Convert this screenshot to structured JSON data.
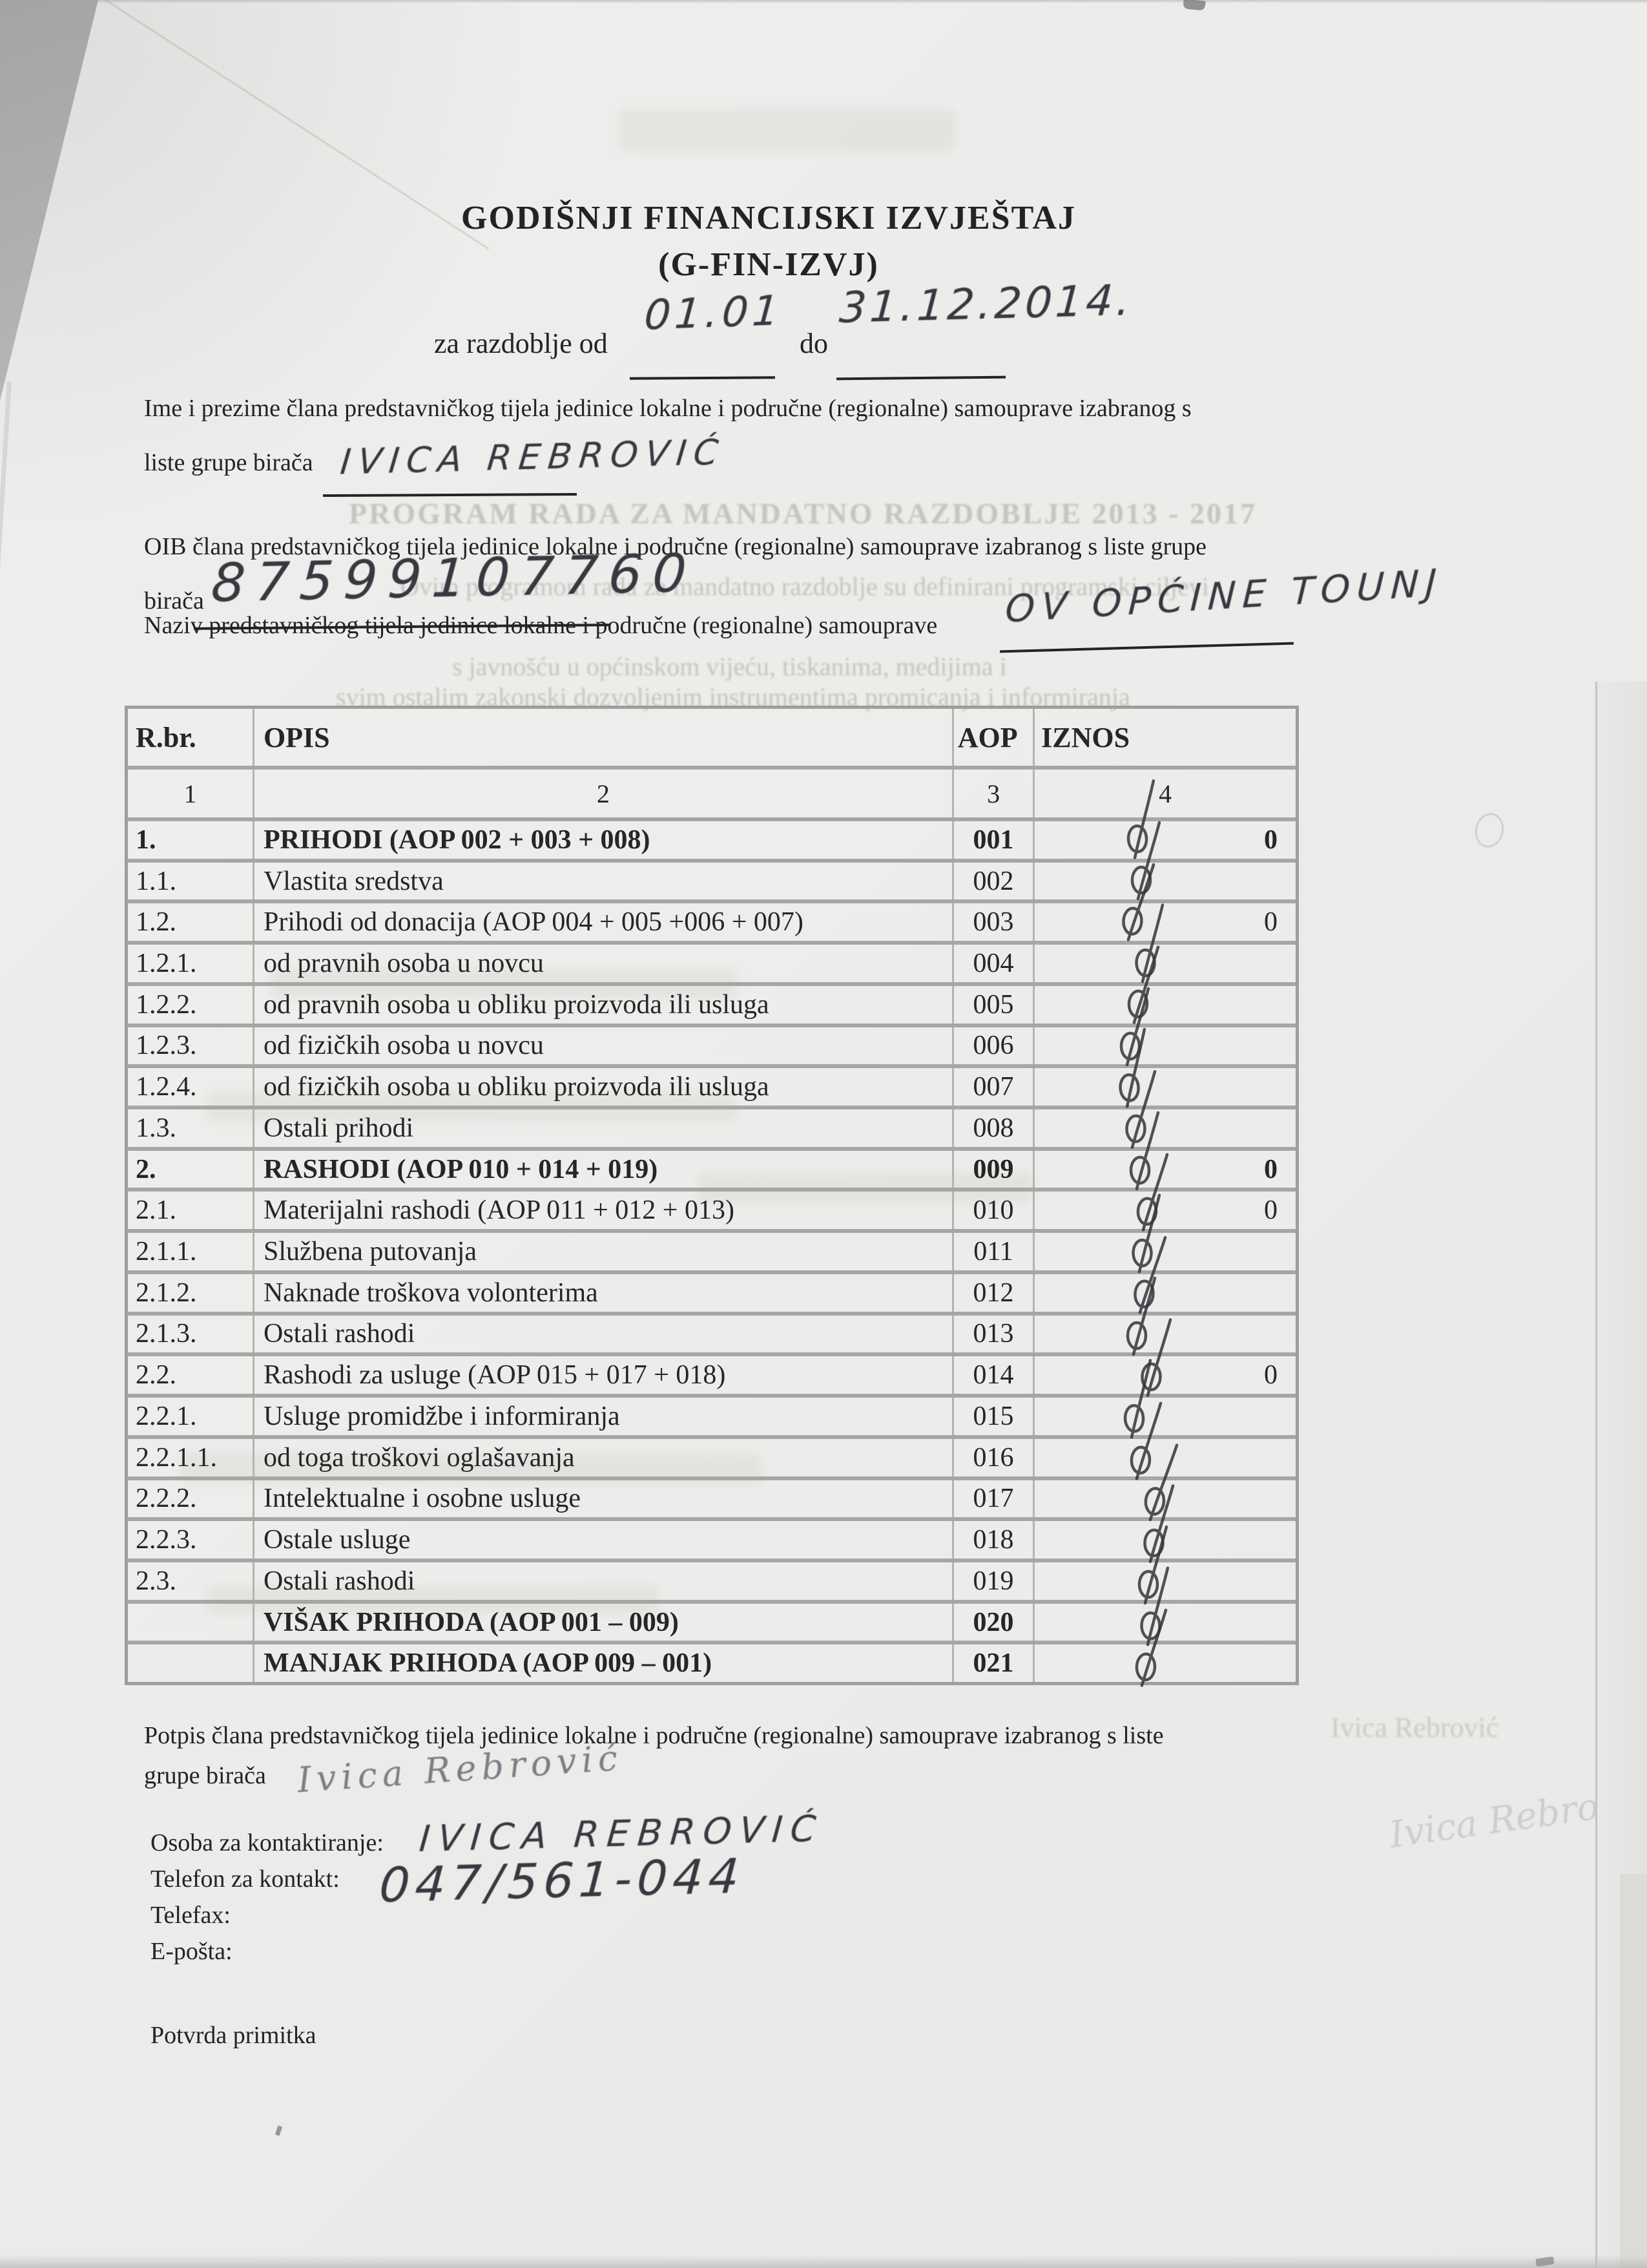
{
  "title": {
    "line1": "GODIŠNJI FINANCIJSKI IZVJEŠTAJ",
    "line2": "(G-FIN-IZVJ)"
  },
  "period": {
    "prefix": "za razdoblje od",
    "from_handwritten": "01.01",
    "do_label": "do",
    "to_handwritten": "31.12.2014."
  },
  "member_name": {
    "line1": "Ime i prezime člana predstavničkog tijela jedinice lokalne i područne (regionalne) samouprave izabranog s",
    "line2": "liste grupe birača",
    "handwritten": "IVICA REBROVIĆ"
  },
  "member_oib": {
    "line1": "OIB člana predstavničkog tijela jedinice lokalne i područne (regionalne) samouprave izabranog s liste grupe",
    "line2": "birača",
    "handwritten": "87599107760"
  },
  "naziv": {
    "line": "Naziv predstavničkog tijela jedinice lokalne i područne (regionalne) samouprave",
    "handwritten": "OV OPĆINE TOUNJ"
  },
  "table": {
    "headers": [
      "R.br.",
      "OPIS",
      "AOP",
      "IZNOS"
    ],
    "column_numbers": [
      "1",
      "2",
      "3",
      "4"
    ],
    "rows": [
      {
        "rbr": "1.",
        "opis": "PRIHODI (AOP 002 + 003 + 008)",
        "aop": "001",
        "iznos": "0",
        "bold": true
      },
      {
        "rbr": "1.1.",
        "opis": "Vlastita sredstva",
        "aop": "002",
        "iznos": ""
      },
      {
        "rbr": "1.2.",
        "opis": "Prihodi od donacija (AOP 004 + 005 +006 + 007)",
        "aop": "003",
        "iznos": "0"
      },
      {
        "rbr": "1.2.1.",
        "opis": "od pravnih osoba u novcu",
        "aop": "004",
        "iznos": ""
      },
      {
        "rbr": "1.2.2.",
        "opis": "od pravnih osoba u obliku proizvoda ili usluga",
        "aop": "005",
        "iznos": ""
      },
      {
        "rbr": "1.2.3.",
        "opis": "od fizičkih osoba u novcu",
        "aop": "006",
        "iznos": ""
      },
      {
        "rbr": "1.2.4.",
        "opis": "od fizičkih osoba u obliku proizvoda ili usluga",
        "aop": "007",
        "iznos": ""
      },
      {
        "rbr": "1.3.",
        "opis": "Ostali prihodi",
        "aop": "008",
        "iznos": ""
      },
      {
        "rbr": "2.",
        "opis": "RASHODI (AOP 010 + 014 + 019)",
        "aop": "009",
        "iznos": "0",
        "bold": true
      },
      {
        "rbr": "2.1.",
        "opis": "Materijalni rashodi (AOP 011 + 012 + 013)",
        "aop": "010",
        "iznos": "0"
      },
      {
        "rbr": "2.1.1.",
        "opis": "Službena putovanja",
        "aop": "011",
        "iznos": ""
      },
      {
        "rbr": "2.1.2.",
        "opis": "Naknade troškova volonterima",
        "aop": "012",
        "iznos": ""
      },
      {
        "rbr": "2.1.3.",
        "opis": "Ostali rashodi",
        "aop": "013",
        "iznos": ""
      },
      {
        "rbr": "2.2.",
        "opis": "Rashodi za usluge (AOP 015 + 017 + 018)",
        "aop": "014",
        "iznos": "0"
      },
      {
        "rbr": "2.2.1.",
        "opis": "Usluge promidžbe i informiranja",
        "aop": "015",
        "iznos": ""
      },
      {
        "rbr": "2.2.1.1.",
        "opis": "od toga troškovi oglašavanja",
        "aop": "016",
        "iznos": ""
      },
      {
        "rbr": "2.2.2.",
        "opis": "Intelektualne i osobne usluge",
        "aop": "017",
        "iznos": ""
      },
      {
        "rbr": "2.2.3.",
        "opis": "Ostale usluge",
        "aop": "018",
        "iznos": ""
      },
      {
        "rbr": "2.3.",
        "opis": "Ostali rashodi",
        "aop": "019",
        "iznos": ""
      },
      {
        "rbr": "",
        "opis": "VIŠAK PRIHODA (AOP 001 – 009)",
        "aop": "020",
        "iznos": "",
        "bold": true
      },
      {
        "rbr": "",
        "opis": "MANJAK PRIHODA (AOP 009 – 001)",
        "aop": "021",
        "iznos": "",
        "bold": true
      }
    ]
  },
  "footer": {
    "potpis_line1": "Potpis člana predstavničkog tijela jedinice lokalne i područne (regionalne) samouprave izabranog s liste",
    "potpis_line2": "grupe birača",
    "signature_handwritten": "Ivica Rebrović",
    "contact_label": "Osoba za kontaktiranje:",
    "contact_handwritten": "IVICA REBROVIĆ",
    "phone_label": "Telefon za kontakt:",
    "phone_handwritten": "047/561-044",
    "fax_label": "Telefax:",
    "email_label": "E-pošta:",
    "receipt_label": "Potvrda primitka"
  },
  "ghost_bleedthrough": {
    "line1": "PROGRAM RADA ZA MANDATNO RAZDOBLJE 2013 - 2017",
    "line2": "Ovim programom rada za mandatno razdoblje su definirani programski ciljevi",
    "line3": "s javnošću u općinskom vijeću, tiskanima, medijima i",
    "line4": "svim ostalim zakonski dozvoljenim instrumentima promicanja i informiranja",
    "name_print": "Ivica Rebrović"
  }
}
